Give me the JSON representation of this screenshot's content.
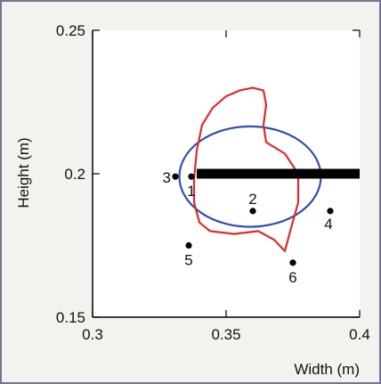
{
  "chart_data": {
    "type": "scatter",
    "xlabel": "Width (m)",
    "ylabel": "Height (m)",
    "xlim": [
      0.3,
      0.4
    ],
    "ylim": [
      0.15,
      0.25
    ],
    "x_ticks": [
      0.3,
      0.35,
      0.4
    ],
    "y_ticks": [
      0.15,
      0.2,
      0.25
    ],
    "x_tick_labels": [
      "0.3",
      "0.35",
      "0.4"
    ],
    "y_tick_labels": [
      "0.15",
      "0.2",
      "0.25"
    ],
    "grid": false,
    "points": [
      {
        "label": "1",
        "x": 0.337,
        "y": 0.199
      },
      {
        "label": "2",
        "x": 0.36,
        "y": 0.187
      },
      {
        "label": "3",
        "x": 0.331,
        "y": 0.199
      },
      {
        "label": "4",
        "x": 0.389,
        "y": 0.187
      },
      {
        "label": "5",
        "x": 0.336,
        "y": 0.175
      },
      {
        "label": "6",
        "x": 0.375,
        "y": 0.169
      }
    ],
    "black_bar": {
      "x": [
        0.339,
        0.4
      ],
      "y": 0.2
    },
    "blue_ellipse": {
      "center": [
        0.359,
        0.199
      ],
      "rx": 0.0265,
      "ry": 0.0175,
      "color": "#2f4fb2"
    },
    "red_contour": {
      "color": "#e02a2a",
      "points": [
        [
          0.35,
          0.227
        ],
        [
          0.355,
          0.229
        ],
        [
          0.36,
          0.23
        ],
        [
          0.364,
          0.229
        ],
        [
          0.365,
          0.224
        ],
        [
          0.364,
          0.217
        ],
        [
          0.365,
          0.211
        ],
        [
          0.372,
          0.207
        ],
        [
          0.377,
          0.2
        ],
        [
          0.377,
          0.19
        ],
        [
          0.374,
          0.18
        ],
        [
          0.372,
          0.173
        ],
        [
          0.368,
          0.177
        ],
        [
          0.362,
          0.18
        ],
        [
          0.353,
          0.179
        ],
        [
          0.344,
          0.18
        ],
        [
          0.34,
          0.183
        ],
        [
          0.338,
          0.19
        ],
        [
          0.338,
          0.198
        ],
        [
          0.339,
          0.208
        ],
        [
          0.341,
          0.217
        ],
        [
          0.345,
          0.223
        ],
        [
          0.35,
          0.227
        ]
      ]
    }
  }
}
